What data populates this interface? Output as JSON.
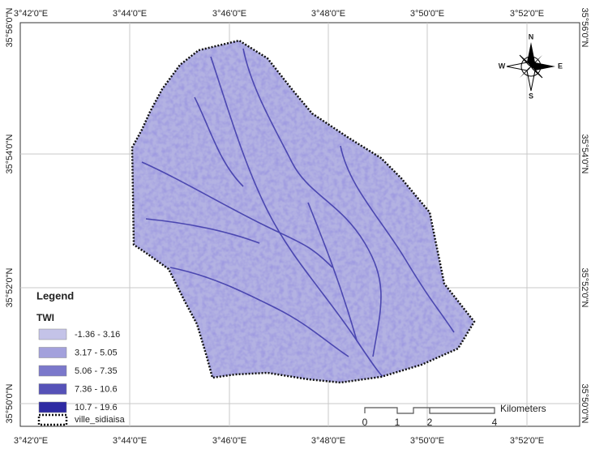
{
  "graticule": {
    "top": [
      "3°42'0\"E",
      "3°44'0\"E",
      "3°46'0\"E",
      "3°48'0\"E",
      "3°50'0\"E",
      "3°52'0\"E"
    ],
    "bottom": [
      "3°42'0\"E",
      "3°44'0\"E",
      "3°46'0\"E",
      "3°48'0\"E",
      "3°50'0\"E",
      "3°52'0\"E"
    ],
    "left": [
      "35°56'0\"N",
      "35°54'0\"N",
      "35°52'0\"N",
      "35°50'0\"N"
    ],
    "right": [
      "35°56'0\"N",
      "35°54'0\"N",
      "35°52'0\"N",
      "35°50'0\"N"
    ]
  },
  "compass": {
    "n": "N",
    "e": "E",
    "s": "S",
    "w": "W"
  },
  "legend": {
    "title": "Legend",
    "subtitle": "TWI",
    "classes": [
      {
        "label": "-1.36 - 3.16",
        "color": "#c4c3e8"
      },
      {
        "label": "3.17 - 5.05",
        "color": "#a3a1dc"
      },
      {
        "label": "5.06 - 7.35",
        "color": "#7b78cb"
      },
      {
        "label": "7.36 - 10.6",
        "color": "#5652b8"
      },
      {
        "label": "10.7 - 19.6",
        "color": "#2e2aa3"
      }
    ],
    "boundary": "ville_sidiaisa"
  },
  "scale_bar": {
    "ticks": [
      "0",
      "1",
      "2",
      "4"
    ],
    "unit": "Kilometers"
  }
}
